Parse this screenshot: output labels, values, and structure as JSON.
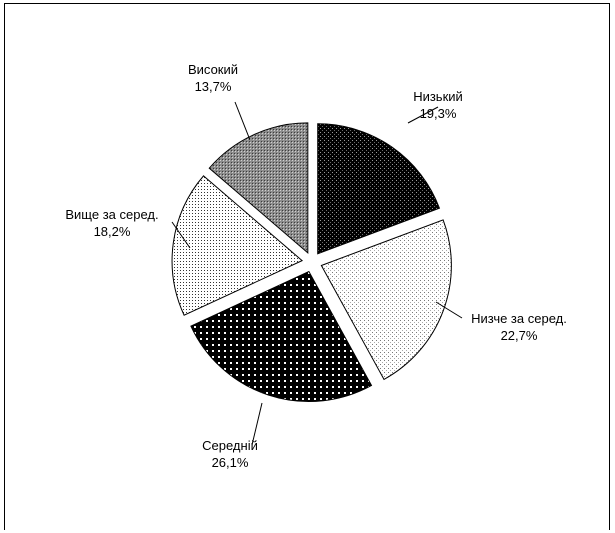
{
  "chart_data": {
    "type": "pie",
    "title": "",
    "exploded": true,
    "start_angle_deg": 0,
    "direction": "clockwise",
    "slices": [
      {
        "label": "Низький",
        "value": 19.3,
        "value_label": "19,3%",
        "fill": "dense-dots-dark"
      },
      {
        "label": "Низче за серед.",
        "value": 22.7,
        "value_label": "22,7%",
        "fill": "sparse-dots-light"
      },
      {
        "label": "Середній",
        "value": 26.1,
        "value_label": "26,1%",
        "fill": "dark-grid-white-dots"
      },
      {
        "label": "Вище за серед.",
        "value": 18.2,
        "value_label": "18,2%",
        "fill": "dots-light"
      },
      {
        "label": "Високий",
        "value": 13.7,
        "value_label": "13,7%",
        "fill": "medium-gray-dots"
      }
    ]
  }
}
